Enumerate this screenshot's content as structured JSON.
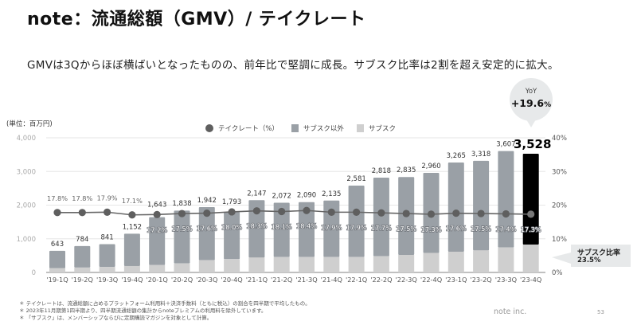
{
  "header": {
    "title": "note：流通総額（GMV）/ テイクレート",
    "subtitle": "GMVは3Qからほぼ横ばいとなったものの、前年比で堅調に成長。サブスク比率は2割を超え安定的に拡大。"
  },
  "colors": {
    "non_subscription": "#9aa0a6",
    "subscription": "#cfcfcf",
    "highlight": "#000000",
    "take_rate_line": "#666666",
    "take_rate_dot": "#5f5f5f",
    "grid": "#e6e6e6",
    "callout_bg": "#e7e9ea"
  },
  "chart_data": {
    "type": "bar",
    "title": "流通総額（GMV）/ テイクレート",
    "unit_label": "(単位：百万円)",
    "xlabel": "",
    "ylabel": "百万円",
    "categories": [
      "'19-1Q",
      "'19-2Q",
      "'19-3Q",
      "'19-4Q",
      "'20-1Q",
      "'20-2Q",
      "'20-3Q",
      "'20-4Q",
      "'21-1Q",
      "'21-2Q",
      "'21-3Q",
      "'21-4Q",
      "'22-1Q",
      "'22-2Q",
      "'22-3Q",
      "'22-4Q",
      "'23-1Q",
      "'23-2Q",
      "'23-3Q",
      "'23-4Q"
    ],
    "stacked": true,
    "series": [
      {
        "name": "サブスク",
        "type": "bar",
        "axis": "left",
        "values": [
          125,
          145,
          165,
          190,
          220,
          268,
          363,
          395,
          442,
          458,
          458,
          458,
          458,
          482,
          521,
          576,
          616,
          655,
          742,
          829
        ]
      },
      {
        "name": "サブスク以外",
        "type": "bar",
        "axis": "left",
        "values": [
          518,
          639,
          676,
          962,
          1423,
          1570,
          1579,
          1398,
          1705,
          1614,
          1632,
          1677,
          2123,
          2336,
          2314,
          2384,
          2649,
          2663,
          2865,
          2699
        ]
      },
      {
        "name": "テイクレート（%）",
        "type": "line",
        "axis": "right",
        "values": [
          17.8,
          17.8,
          17.9,
          17.1,
          17.2,
          17.5,
          17.6,
          18.0,
          18.3,
          18.1,
          18.4,
          17.9,
          17.9,
          17.7,
          17.5,
          17.3,
          17.6,
          17.5,
          17.4,
          17.3
        ]
      }
    ],
    "totals": [
      643,
      784,
      841,
      1152,
      1643,
      1838,
      1942,
      1793,
      2147,
      2072,
      2090,
      2135,
      2581,
      2818,
      2835,
      2960,
      3265,
      3318,
      3607,
      3528
    ],
    "total_labels": [
      "643",
      "784",
      "841",
      "1,152",
      "1,643",
      "1,838",
      "1,942",
      "1,793",
      "2,147",
      "2,072",
      "2,090",
      "2,135",
      "2,581",
      "2,818",
      "2,835",
      "2,960",
      "3,265",
      "3,318",
      "3,607",
      "3,528"
    ],
    "rate_labels": [
      "17.8%",
      "17.8%",
      "17.9%",
      "17.1%",
      "17.2%",
      "17.5%",
      "17.6%",
      "18.0%",
      "18.3%",
      "18.1%",
      "18.4%",
      "17.9%",
      "17.9%",
      "17.7%",
      "17.5%",
      "17.3%",
      "17.6%",
      "17.5%",
      "17.4%",
      "17.3%"
    ],
    "highlight_category": "'23-4Q",
    "y_left": {
      "range": [
        0,
        4000
      ],
      "tick_values": [
        0,
        1000,
        2000,
        3000,
        4000
      ],
      "tick_labels": [
        "0",
        "1,000",
        "2,000",
        "3,000",
        "4,000"
      ]
    },
    "y_right": {
      "range": [
        0,
        40
      ],
      "tick_values": [
        0,
        10,
        20,
        30,
        40
      ],
      "tick_labels": [
        "0%",
        "10%",
        "20%",
        "30%",
        "40%"
      ]
    },
    "grid": true,
    "legend_position": "top-center",
    "legend": [
      {
        "label": "テイクレート（%）",
        "marker": "circle"
      },
      {
        "label": "サブスク以外",
        "marker": "square"
      },
      {
        "label": "サブスク",
        "marker": "square"
      }
    ],
    "annotations": {
      "yoy_label": "YoY",
      "yoy_value": "+19.6",
      "yoy_unit": "%",
      "sub_ratio_label": "サブスク比率",
      "sub_ratio_value": "23.5%"
    }
  },
  "footnotes": [
    "＊ テイクレートは、流通総額に占めるプラットフォーム利用料＋決済手数料（ともに税込）の割合を四半期で平均したもの。",
    "＊ 2023年11月期第1四半期より、四半期流通総額の集計からnoteプレミアムの利用料を除外しています。",
    "＊ 「サブスク」は、メンバーシップならびに定期購読マガジンを対象として計算。"
  ],
  "footer": {
    "company": "note inc.",
    "page": "53"
  }
}
